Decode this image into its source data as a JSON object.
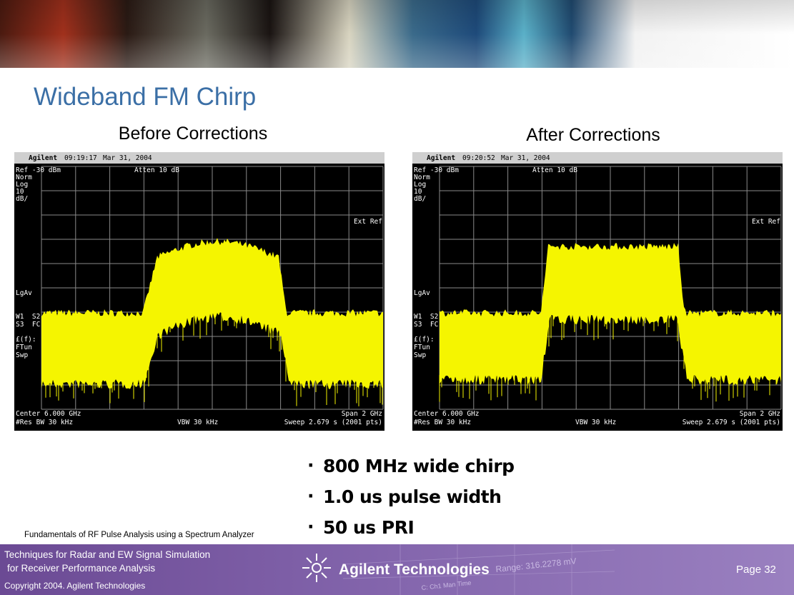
{
  "header": {
    "title": "Wideband FM Chirp"
  },
  "panels": [
    {
      "heading": "Before Corrections",
      "screen": {
        "brand": "Agilent",
        "timestamp": "09:19:17",
        "date": "Mar 31, 2004",
        "ref": "Ref -30 dBm",
        "atten": "Atten 10 dB",
        "scale_labels": [
          "Norm",
          "Log",
          "10",
          "dB/"
        ],
        "ext_ref": "Ext Ref",
        "avg": "LgAv",
        "trace_labels": [
          "W1  S2",
          "S3  FC"
        ],
        "func_labels": [
          "£(f):",
          "FTun",
          "Swp"
        ],
        "center": "Center 6.000 GHz",
        "span": "Span 2 GHz",
        "res_bw": "#Res BW 30 kHz",
        "vbw": "VBW 30 kHz",
        "sweep": "Sweep 2.679 s (2001 pts)"
      }
    },
    {
      "heading": "After Corrections",
      "screen": {
        "brand": "Agilent",
        "timestamp": "09:20:52",
        "date": "Mar 31, 2004",
        "ref": "Ref -30 dBm",
        "atten": "Atten 10 dB",
        "scale_labels": [
          "Norm",
          "Log",
          "10",
          "dB/"
        ],
        "ext_ref": "Ext Ref",
        "avg": "LgAv",
        "trace_labels": [
          "W1  S2",
          "S3  FC"
        ],
        "func_labels": [
          "£(f):",
          "FTun",
          "Swp"
        ],
        "center": "Center 6.000 GHz",
        "span": "Span 2 GHz",
        "res_bw": "#Res BW 30 kHz",
        "vbw": "VBW 30 kHz",
        "sweep": "Sweep 2.679 s (2001 pts)"
      }
    }
  ],
  "bullets": [
    "800 MHz wide chirp",
    "1.0 us pulse width",
    "50 us PRI"
  ],
  "footer": {
    "course": "Fundamentals of RF Pulse Analysis using a Spectrum Analyzer",
    "lines": [
      "Techniques for Radar and EW Signal Simulation",
      "for Receiver Performance Analysis",
      "Copyright  2004. Agilent Technologies"
    ],
    "logo": "Agilent Technologies",
    "watermark": [
      "Range: 316.2278 mV",
      "C: Ch1 Man Time"
    ],
    "page": "Page 32"
  }
}
